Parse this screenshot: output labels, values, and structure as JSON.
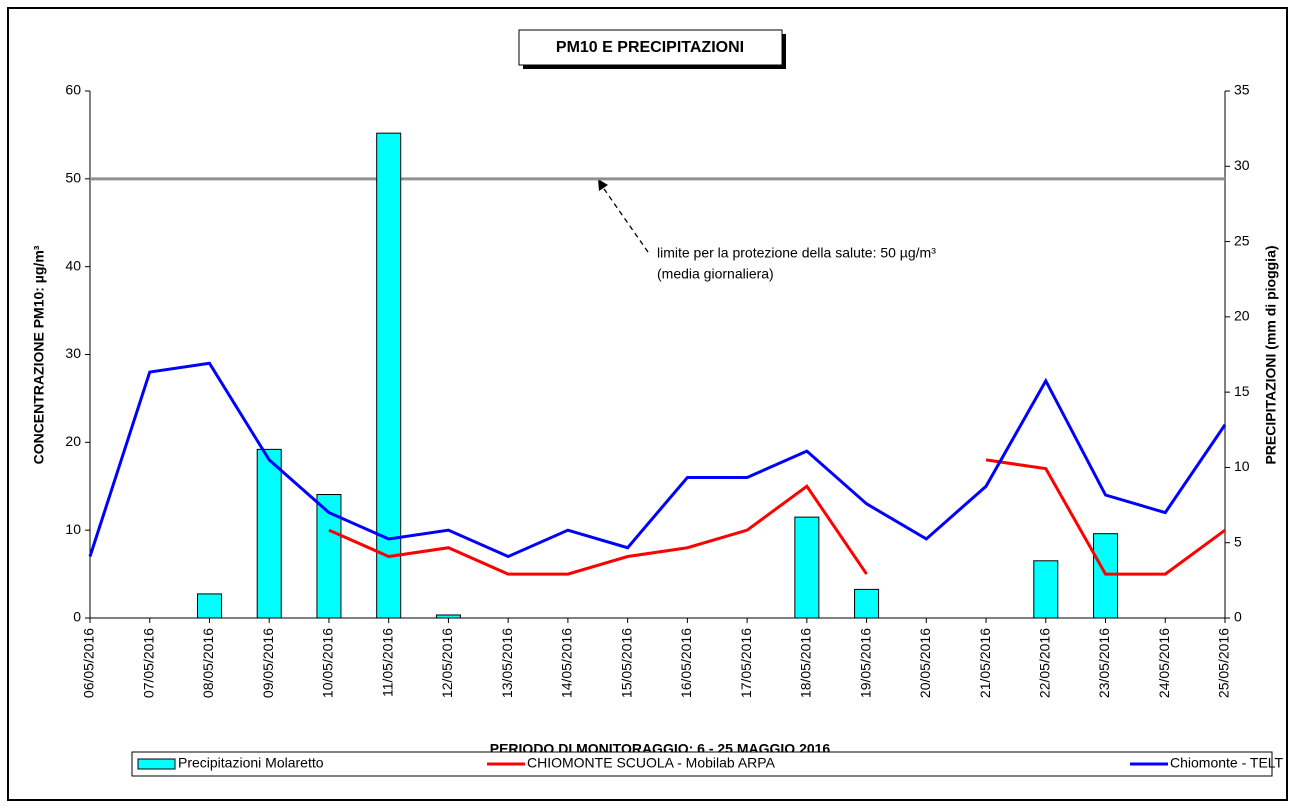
{
  "chart_data": {
    "type": "bar_line",
    "title": "PM10 E PRECIPITAZIONI",
    "x_label": "PERIODO DI MONITORAGGIO: 6 - 25 MAGGIO 2016",
    "y_label": "CONCENTRAZIONE PM10: µg/m³",
    "y2_label": "PRECIPITAZIONI (mm di pioggia)",
    "categories": [
      "06/05/2016",
      "07/05/2016",
      "08/05/2016",
      "09/05/2016",
      "10/05/2016",
      "11/05/2016",
      "12/05/2016",
      "13/05/2016",
      "14/05/2016",
      "15/05/2016",
      "16/05/2016",
      "17/05/2016",
      "18/05/2016",
      "19/05/2016",
      "20/05/2016",
      "21/05/2016",
      "22/05/2016",
      "23/05/2016",
      "24/05/2016",
      "25/05/2016"
    ],
    "series": [
      {
        "name": "Precipitazioni Molaretto",
        "type": "bar",
        "axis": "y2",
        "color": "#00ffff",
        "values": [
          null,
          null,
          1.6,
          11.2,
          8.2,
          32.2,
          0.2,
          null,
          null,
          null,
          null,
          null,
          6.7,
          1.9,
          null,
          null,
          3.8,
          5.6,
          null,
          null
        ]
      },
      {
        "name": "CHIOMONTE SCUOLA - Mobilab ARPA",
        "type": "line",
        "color": "#ff0000",
        "values": [
          null,
          null,
          null,
          null,
          10,
          7,
          8,
          5,
          5,
          7,
          8,
          10,
          15,
          5,
          null,
          18,
          17,
          5,
          5,
          10
        ]
      },
      {
        "name": "Chiomonte - TELT",
        "type": "line",
        "color": "#0000ff",
        "values": [
          7,
          28,
          29,
          18,
          12,
          9,
          10,
          7,
          10,
          8,
          16,
          16,
          19,
          13,
          9,
          15,
          27,
          14,
          12,
          22
        ]
      }
    ],
    "limit": {
      "value": 50,
      "color": "#909090",
      "text": [
        "limite per la protezione della salute: 50 µg/m³",
        "(media giornaliera)"
      ]
    },
    "ylim": [
      0,
      60
    ],
    "yticks": [
      0,
      10,
      20,
      30,
      40,
      50,
      60
    ],
    "y2lim": [
      0,
      35
    ],
    "y2ticks": [
      0,
      5,
      10,
      15,
      20,
      25,
      30,
      35
    ]
  }
}
